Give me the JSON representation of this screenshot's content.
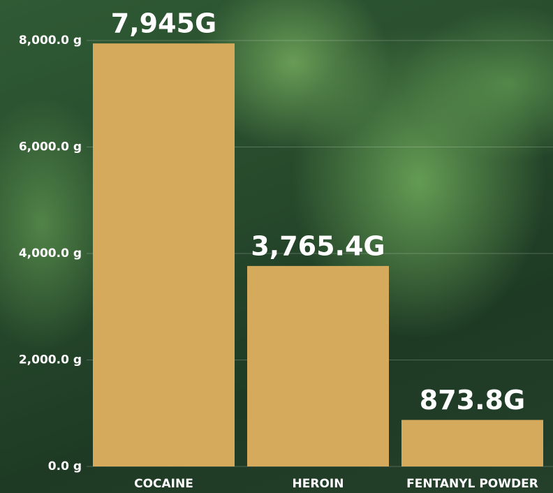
{
  "chart_data": {
    "type": "bar",
    "categories": [
      "COCAINE",
      "HEROIN",
      "FENTANYL POWDER"
    ],
    "values": [
      7945,
      3765.4,
      873.8
    ],
    "value_labels": [
      "7,945G",
      "3,765.4G",
      "873.8G"
    ],
    "color": "#d6aa5c",
    "ylim": [
      0,
      8000
    ],
    "yticks": [
      {
        "value": 0,
        "label": "0.0 g"
      },
      {
        "value": 2000,
        "label": "2,000.0 g"
      },
      {
        "value": 4000,
        "label": "4,000.0 g"
      },
      {
        "value": 6000,
        "label": "6,000.0 g"
      },
      {
        "value": 8000,
        "label": "8,000.0 g"
      }
    ],
    "grid": true
  }
}
